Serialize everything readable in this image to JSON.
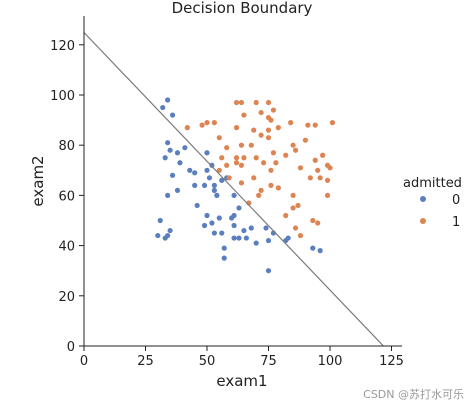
{
  "chart_data": {
    "type": "scatter",
    "title": "Decision Boundary",
    "xlabel": "exam1",
    "ylabel": "exam2",
    "xlim": [
      0,
      130
    ],
    "ylim": [
      0,
      135
    ],
    "xticks": [
      0,
      25,
      50,
      75,
      100,
      125
    ],
    "yticks": [
      0,
      20,
      40,
      60,
      80,
      100,
      120
    ],
    "grid": false,
    "legend": {
      "title": "admitted",
      "position": "right"
    },
    "series": [
      {
        "name": "0",
        "color": "#5a7fbf",
        "points": [
          [
            34,
            98
          ],
          [
            32,
            95
          ],
          [
            36,
            92
          ],
          [
            34,
            81
          ],
          [
            35,
            78
          ],
          [
            38,
            77
          ],
          [
            41,
            79
          ],
          [
            33,
            75
          ],
          [
            39,
            73
          ],
          [
            43,
            70
          ],
          [
            45,
            69
          ],
          [
            50,
            77
          ],
          [
            50,
            70
          ],
          [
            52,
            72
          ],
          [
            51,
            67
          ],
          [
            49,
            64
          ],
          [
            53,
            64
          ],
          [
            36,
            68
          ],
          [
            34,
            60
          ],
          [
            38,
            62
          ],
          [
            45,
            64
          ],
          [
            53,
            62
          ],
          [
            54,
            60
          ],
          [
            46,
            56
          ],
          [
            58,
            67
          ],
          [
            56,
            66
          ],
          [
            61,
            60
          ],
          [
            50,
            52
          ],
          [
            52,
            49
          ],
          [
            49,
            48
          ],
          [
            55,
            51
          ],
          [
            61,
            52
          ],
          [
            63,
            55
          ],
          [
            60,
            51
          ],
          [
            61,
            48
          ],
          [
            53,
            45
          ],
          [
            56,
            45
          ],
          [
            63,
            43
          ],
          [
            65,
            46
          ],
          [
            68,
            47
          ],
          [
            74,
            47
          ],
          [
            77,
            45
          ],
          [
            75,
            42
          ],
          [
            70,
            41
          ],
          [
            31,
            50
          ],
          [
            30,
            44
          ],
          [
            33,
            43
          ],
          [
            35,
            46
          ],
          [
            34,
            44
          ],
          [
            61,
            43
          ],
          [
            57,
            39
          ],
          [
            66,
            43
          ],
          [
            83,
            43
          ],
          [
            82,
            42
          ],
          [
            93,
            39
          ],
          [
            96,
            38
          ],
          [
            57,
            35
          ],
          [
            75,
            30
          ]
        ]
      },
      {
        "name": "1",
        "color": "#dd8452",
        "points": [
          [
            50,
            89
          ],
          [
            42,
            87
          ],
          [
            48,
            88
          ],
          [
            53,
            89
          ],
          [
            62,
            97
          ],
          [
            64,
            97
          ],
          [
            70,
            97
          ],
          [
            75,
            97
          ],
          [
            72,
            93
          ],
          [
            75,
            91
          ],
          [
            77,
            94
          ],
          [
            76,
            90
          ],
          [
            75,
            86
          ],
          [
            79,
            87
          ],
          [
            84,
            89
          ],
          [
            85,
            80
          ],
          [
            91,
            88
          ],
          [
            94,
            88
          ],
          [
            101,
            89
          ],
          [
            75,
            83
          ],
          [
            77,
            77
          ],
          [
            65,
            92
          ],
          [
            62,
            87
          ],
          [
            69,
            86
          ],
          [
            72,
            84
          ],
          [
            55,
            83
          ],
          [
            58,
            79
          ],
          [
            56,
            75
          ],
          [
            62,
            75
          ],
          [
            65,
            75
          ],
          [
            68,
            80
          ],
          [
            64,
            80
          ],
          [
            70,
            75
          ],
          [
            73,
            73
          ],
          [
            82,
            76
          ],
          [
            86,
            78
          ],
          [
            90,
            82
          ],
          [
            94,
            74
          ],
          [
            97,
            76
          ],
          [
            99,
            72
          ],
          [
            100,
            71
          ],
          [
            95,
            70
          ],
          [
            88,
            71
          ],
          [
            92,
            67
          ],
          [
            99,
            66
          ],
          [
            96,
            67
          ],
          [
            76,
            70
          ],
          [
            69,
            67
          ],
          [
            64,
            72
          ],
          [
            62,
            73
          ],
          [
            58,
            72
          ],
          [
            55,
            70
          ],
          [
            72,
            62
          ],
          [
            67,
            57
          ],
          [
            71,
            60
          ],
          [
            76,
            64
          ],
          [
            79,
            63
          ],
          [
            85,
            60
          ],
          [
            87,
            56
          ],
          [
            82,
            52
          ],
          [
            93,
            50
          ],
          [
            95,
            49
          ],
          [
            88,
            44
          ],
          [
            86,
            47
          ],
          [
            85,
            55
          ],
          [
            59,
            67
          ],
          [
            78,
            73
          ],
          [
            99,
            60
          ],
          [
            64,
            65
          ]
        ]
      }
    ],
    "decision_boundary": {
      "color": "#7a7a7a",
      "points": [
        [
          0,
          124.9
        ],
        [
          121.7,
          0
        ]
      ]
    }
  },
  "watermark": "CSDN @苏打水可乐"
}
